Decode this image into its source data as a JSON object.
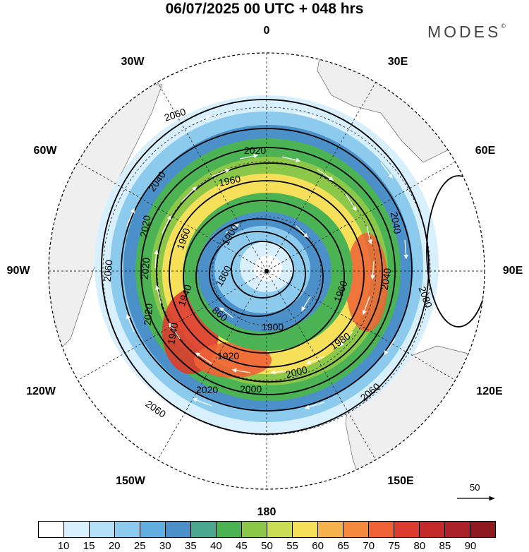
{
  "header": {
    "title": "06/07/2025  00 UTC  + 048 hrs",
    "brand": "MODES",
    "brand_mark": "©"
  },
  "longitudes": {
    "top": "0",
    "bottom": "180",
    "left": "90W",
    "right": "90E",
    "upper_left": "30W",
    "upper_right": "30E",
    "mid_left": "60W",
    "mid_right": "60E",
    "lower_left": "120W",
    "lower_right": "120E",
    "bottom_left": "150W",
    "bottom_right": "150E"
  },
  "contours": {
    "labels": [
      "2060",
      "2020",
      "1960",
      "1900",
      "1860",
      "860",
      "1940",
      "1920",
      "2000",
      "2020",
      "2060",
      "1980",
      "2040",
      "2060",
      "2080",
      "2040",
      "2020",
      "1960",
      "1900",
      "2020",
      "2060",
      "1960",
      "1940",
      "2000",
      "2040",
      "2020"
    ]
  },
  "vector_scale": {
    "label": "50"
  },
  "colorbar": {
    "labels": [
      "10",
      "15",
      "20",
      "25",
      "30",
      "35",
      "40",
      "45",
      "50",
      "55",
      "60",
      "65",
      "70",
      "75",
      "80",
      "85",
      "90"
    ],
    "colors": [
      "#ffffff",
      "#d8f0fd",
      "#b4e0f7",
      "#8ccbee",
      "#63aee0",
      "#4b90c8",
      "#4aa890",
      "#4cb355",
      "#8bc84a",
      "#c9de55",
      "#f6e05a",
      "#f6b24c",
      "#f58a3e",
      "#ee6236",
      "#dd3b30",
      "#c42a2a",
      "#ac2228",
      "#8e1a20"
    ]
  }
}
